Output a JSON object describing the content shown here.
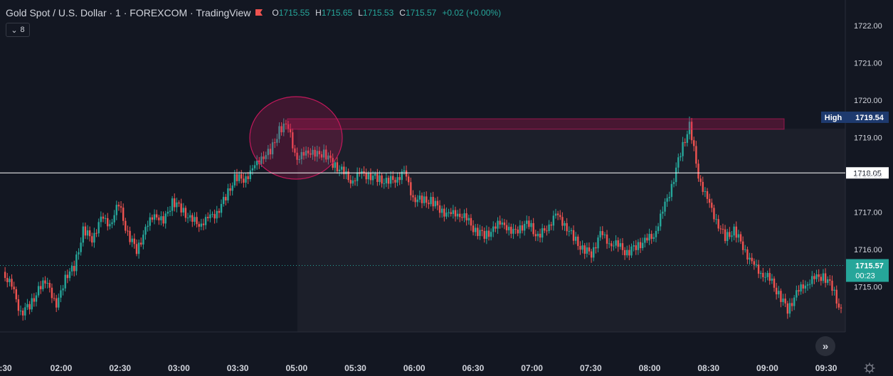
{
  "header": {
    "title": "Gold Spot / U.S. Dollar · 1 · FOREXCOM · TradingView",
    "open_label": "O",
    "open": "1715.55",
    "high_label": "H",
    "high": "1715.65",
    "low_label": "L",
    "low": "1715.53",
    "close_label": "C",
    "close": "1715.57",
    "change": "+0.02 (+0.00%)",
    "indicator_count": "8"
  },
  "colors": {
    "background": "#131722",
    "up": "#26a69a",
    "down": "#ef5350",
    "zone": "#c2185b",
    "text": "#d1d4dc",
    "high_tag": "#1e3a6e",
    "price_tag": "#26a69a"
  },
  "chart_data": {
    "type": "candlestick",
    "title": "Gold Spot / U.S. Dollar",
    "x_ticks": [
      ":30",
      "02:00",
      "02:30",
      "03:00",
      "03:30",
      "05:00",
      "05:30",
      "06:00",
      "06:30",
      "07:00",
      "07:30",
      "08:00",
      "08:30",
      "09:00",
      "09:30"
    ],
    "y_ticks": [
      "1722.00",
      "1721.00",
      "1720.00",
      "1719.00",
      "1718.00",
      "1717.00",
      "1716.00",
      "1715.00"
    ],
    "ylim": [
      1714.0,
      1722.3
    ],
    "high_label": "High",
    "high_value": 1719.54,
    "level_line": 1718.05,
    "level_label": "1718.05",
    "last_price": 1715.57,
    "last_price_label": "1715.57",
    "countdown": "00:23",
    "zone": {
      "top": 1719.5,
      "bottom": 1719.22
    },
    "series": [
      {
        "values": [
          [
            0.0,
            1715.4
          ],
          [
            0.03,
            1715.0
          ],
          [
            0.06,
            1714.3
          ],
          [
            0.09,
            1714.5
          ],
          [
            0.12,
            1714.9
          ],
          [
            0.15,
            1715.2
          ],
          [
            0.18,
            1714.4
          ],
          [
            0.21,
            1715.3
          ],
          [
            0.24,
            1715.5
          ],
          [
            0.27,
            1716.5
          ],
          [
            0.3,
            1716.3
          ],
          [
            0.33,
            1716.8
          ],
          [
            0.36,
            1716.7
          ],
          [
            0.39,
            1717.2
          ],
          [
            0.42,
            1716.4
          ],
          [
            0.45,
            1716.0
          ],
          [
            0.48,
            1716.5
          ],
          [
            0.51,
            1717.0
          ],
          [
            0.54,
            1716.7
          ],
          [
            0.57,
            1717.3
          ],
          [
            0.6,
            1717.1
          ],
          [
            0.63,
            1716.8
          ],
          [
            0.66,
            1716.7
          ],
          [
            0.69,
            1716.8
          ],
          [
            0.72,
            1717.0
          ],
          [
            0.75,
            1717.4
          ],
          [
            0.78,
            1717.9
          ],
          [
            0.81,
            1717.9
          ],
          [
            0.84,
            1718.1
          ],
          [
            0.87,
            1718.5
          ],
          [
            0.9,
            1718.6
          ],
          [
            0.93,
            1719.2
          ],
          [
            0.96,
            1719.35
          ],
          [
            0.99,
            1718.3
          ],
          [
            1.02,
            1718.7
          ],
          [
            1.05,
            1718.5
          ],
          [
            1.08,
            1718.6
          ],
          [
            1.11,
            1718.3
          ],
          [
            1.14,
            1718.1
          ],
          [
            1.17,
            1717.85
          ],
          [
            1.2,
            1718.0
          ],
          [
            1.23,
            1718.0
          ],
          [
            1.26,
            1717.9
          ],
          [
            1.29,
            1717.8
          ],
          [
            1.32,
            1717.9
          ],
          [
            1.35,
            1718.05
          ],
          [
            1.38,
            1717.4
          ],
          [
            1.41,
            1717.3
          ],
          [
            1.44,
            1717.3
          ],
          [
            1.47,
            1717.1
          ],
          [
            1.5,
            1716.9
          ],
          [
            1.53,
            1717.0
          ],
          [
            1.56,
            1716.8
          ],
          [
            1.59,
            1716.5
          ],
          [
            1.62,
            1716.4
          ],
          [
            1.65,
            1716.5
          ],
          [
            1.68,
            1716.8
          ],
          [
            1.71,
            1716.4
          ],
          [
            1.74,
            1716.6
          ],
          [
            1.77,
            1716.7
          ],
          [
            1.8,
            1716.3
          ],
          [
            1.83,
            1716.6
          ],
          [
            1.86,
            1716.9
          ],
          [
            1.89,
            1716.7
          ],
          [
            1.92,
            1716.3
          ],
          [
            1.95,
            1716.0
          ],
          [
            1.98,
            1715.9
          ],
          [
            2.01,
            1716.4
          ],
          [
            2.04,
            1716.2
          ],
          [
            2.07,
            1716.1
          ],
          [
            2.1,
            1715.9
          ],
          [
            2.13,
            1716.1
          ],
          [
            2.16,
            1716.2
          ],
          [
            2.19,
            1716.4
          ],
          [
            2.22,
            1717.0
          ],
          [
            2.25,
            1717.7
          ],
          [
            2.28,
            1718.6
          ],
          [
            2.31,
            1719.3
          ],
          [
            2.34,
            1718.0
          ],
          [
            2.37,
            1717.3
          ],
          [
            2.4,
            1716.8
          ],
          [
            2.43,
            1716.3
          ],
          [
            2.46,
            1716.5
          ],
          [
            2.49,
            1716.1
          ],
          [
            2.52,
            1715.6
          ],
          [
            2.55,
            1715.4
          ],
          [
            2.58,
            1715.2
          ],
          [
            2.61,
            1714.8
          ],
          [
            2.64,
            1714.4
          ],
          [
            2.67,
            1714.8
          ],
          [
            2.7,
            1715.1
          ],
          [
            2.73,
            1715.2
          ],
          [
            2.76,
            1715.3
          ],
          [
            2.79,
            1715.0
          ],
          [
            2.82,
            1714.3
          ]
        ]
      }
    ]
  },
  "axis_label_precision": "1715.57"
}
